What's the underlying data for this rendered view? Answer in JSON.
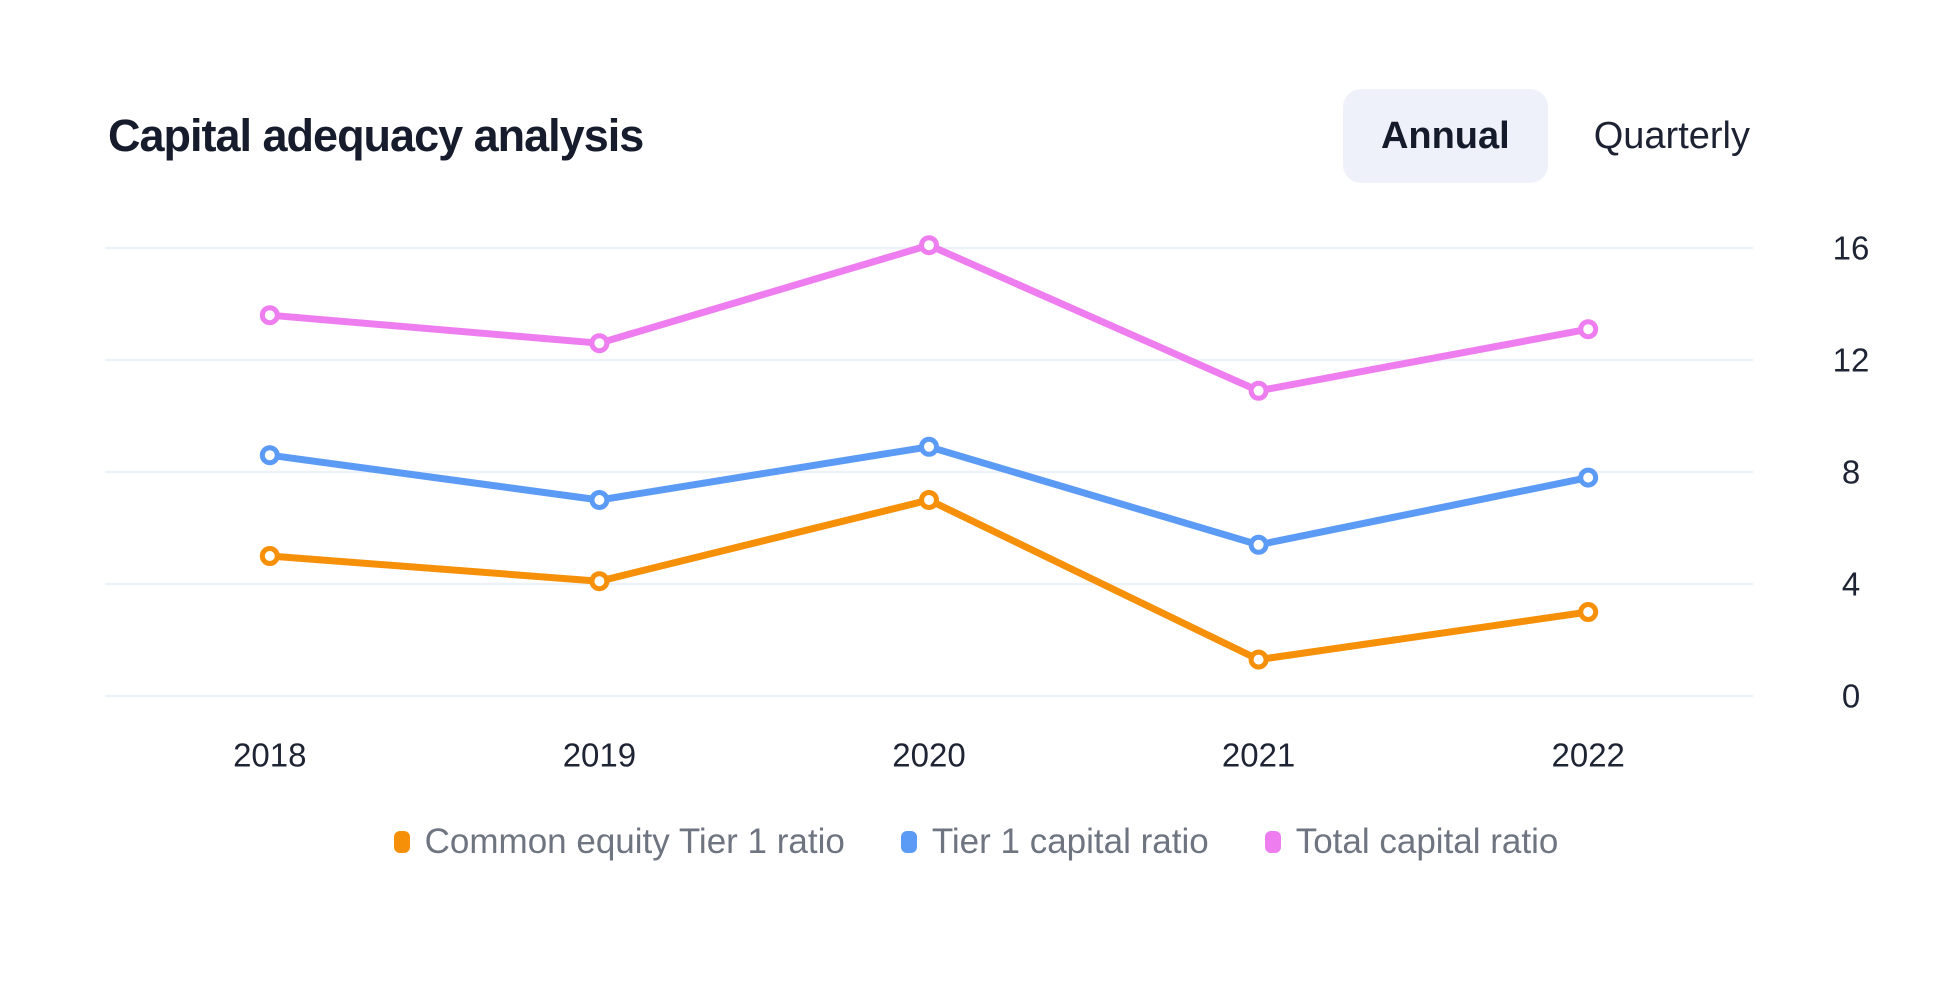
{
  "header": {
    "title": "Capital adequacy analysis",
    "toggle": {
      "options": [
        {
          "label": "Annual",
          "active": true
        },
        {
          "label": "Quarterly",
          "active": false
        }
      ],
      "active_bg": "#eef1f9",
      "active_color": "#161b2c",
      "inactive_color": "#1d2232"
    }
  },
  "chart_data": {
    "type": "line",
    "title": "Capital adequacy analysis",
    "categories": [
      "2018",
      "2019",
      "2020",
      "2021",
      "2022"
    ],
    "series": [
      {
        "name": "Common equity Tier 1 ratio",
        "color": "#f79009",
        "values": [
          5.0,
          4.1,
          7.0,
          1.3,
          3.0
        ]
      },
      {
        "name": "Tier 1 capital ratio",
        "color": "#5b9bf5",
        "values": [
          8.6,
          7.0,
          8.9,
          5.4,
          7.8
        ]
      },
      {
        "name": "Total capital ratio",
        "color": "#ee7df0",
        "values": [
          13.6,
          12.6,
          16.1,
          10.9,
          13.1
        ]
      }
    ],
    "yticks": [
      0,
      4,
      8,
      12,
      16
    ],
    "ylim": [
      0,
      17.8
    ],
    "y_axis_side": "right",
    "grid": true,
    "gridline_color": "#edf1f8",
    "axis_label_color": "#1e2433",
    "legend_position": "bottom",
    "legend_text_color": "#6e7480",
    "xlabel": "",
    "ylabel": ""
  }
}
